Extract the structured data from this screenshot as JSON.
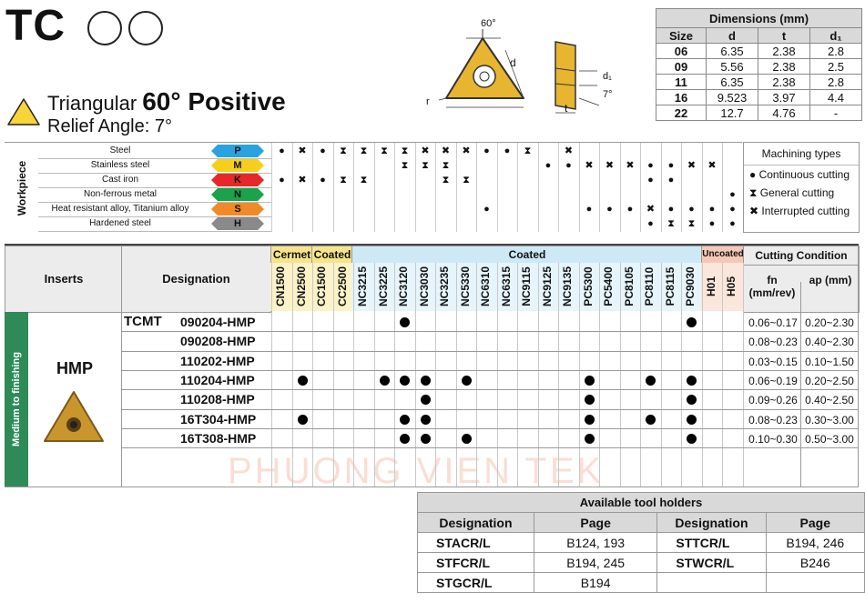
{
  "header": {
    "code": "TC",
    "shape": "Triangular",
    "angle_title": "60° Positive",
    "relief": "Relief Angle: 7°"
  },
  "drawing": {
    "angle": "60°",
    "d": "d",
    "r": "r",
    "d1": "d₁",
    "t": "t",
    "relief": "7°"
  },
  "dimensions": {
    "title": "Dimensions (mm)",
    "headers": [
      "Size",
      "d",
      "t",
      "d₁"
    ],
    "rows": [
      [
        "06",
        "6.35",
        "2.38",
        "2.8"
      ],
      [
        "09",
        "5.56",
        "2.38",
        "2.5"
      ],
      [
        "11",
        "6.35",
        "2.38",
        "2.8"
      ],
      [
        "16",
        "9.523",
        "3.97",
        "4.4"
      ],
      [
        "22",
        "12.7",
        "4.76",
        "-"
      ]
    ]
  },
  "workpiece": {
    "label": "Workpiece",
    "materials": [
      {
        "name": "Steel",
        "tag": "P",
        "color": "#29a3e0"
      },
      {
        "name": "Stainless steel",
        "tag": "M",
        "color": "#f6cf1c"
      },
      {
        "name": "Cast iron",
        "tag": "K",
        "color": "#e5282a"
      },
      {
        "name": "Non-ferrous metal",
        "tag": "N",
        "color": "#1aa34a"
      },
      {
        "name": "Heat resistant alloy, Titanium alloy",
        "tag": "S",
        "color": "#f08a28"
      },
      {
        "name": "Hardened steel",
        "tag": "H",
        "color": "#8a8a8a"
      }
    ]
  },
  "machining_types": {
    "title": "Machining types",
    "items": [
      {
        "symbol": "●",
        "label": "Continuous cutting"
      },
      {
        "symbol": "⧗",
        "label": "General cutting"
      },
      {
        "symbol": "✖",
        "label": "Interrupted cutting"
      }
    ]
  },
  "main": {
    "inserts_header": "Inserts",
    "designation_header": "Designation",
    "group_cermet": "Cermet",
    "group_coated_small": "Coated",
    "group_coated": "Coated",
    "group_uncoated": "Uncoated",
    "cutting_condition": "Cutting Condition",
    "fn_header": "fn (mm/rev)",
    "ap_header": "ap (mm)",
    "side_label": "Medium to finishing",
    "insert_name": "HMP",
    "prefix": "TCMT",
    "grades": [
      "CN1500",
      "CN2500",
      "CC1500",
      "CC2500",
      "NC3215",
      "NC3225",
      "NC3120",
      "NC3030",
      "NC3235",
      "NC5330",
      "NC6310",
      "NC6315",
      "NC9115",
      "NC9125",
      "NC9135",
      "PC5300",
      "PC5400",
      "PC8105",
      "PC8110",
      "PC8115",
      "PC9030",
      "H01",
      "H05"
    ],
    "rows": [
      {
        "designation": "090204-HMP",
        "fn": "0.06~0.17",
        "ap": "0.20~2.30",
        "dots": [
          6,
          20
        ]
      },
      {
        "designation": "090208-HMP",
        "fn": "0.08~0.23",
        "ap": "0.40~2.30",
        "dots": []
      },
      {
        "designation": "110202-HMP",
        "fn": "0.03~0.15",
        "ap": "0.10~1.50",
        "dots": []
      },
      {
        "designation": "110204-HMP",
        "fn": "0.06~0.19",
        "ap": "0.20~2.50",
        "dots": [
          1,
          5,
          6,
          7,
          9,
          15,
          18,
          20
        ]
      },
      {
        "designation": "110208-HMP",
        "fn": "0.09~0.26",
        "ap": "0.40~2.50",
        "dots": [
          7,
          15,
          20
        ]
      },
      {
        "designation": "16T304-HMP",
        "fn": "0.08~0.23",
        "ap": "0.30~3.00",
        "dots": [
          1,
          6,
          7,
          15,
          18,
          20
        ]
      },
      {
        "designation": "16T308-HMP",
        "fn": "0.10~0.30",
        "ap": "0.50~3.00",
        "dots": [
          6,
          7,
          9,
          15,
          20
        ]
      }
    ]
  },
  "holders": {
    "title": "Available tool holders",
    "headers": [
      "Designation",
      "Page",
      "Designation",
      "Page"
    ],
    "rows": [
      [
        "STACR/L",
        "B124, 193",
        "STTCR/L",
        "B194, 246"
      ],
      [
        "STFCR/L",
        "B194, 245",
        "STWCR/L",
        "B246"
      ],
      [
        "STGCR/L",
        "B194",
        "",
        ""
      ]
    ]
  },
  "watermark": "PHUONG VIEN TEK"
}
